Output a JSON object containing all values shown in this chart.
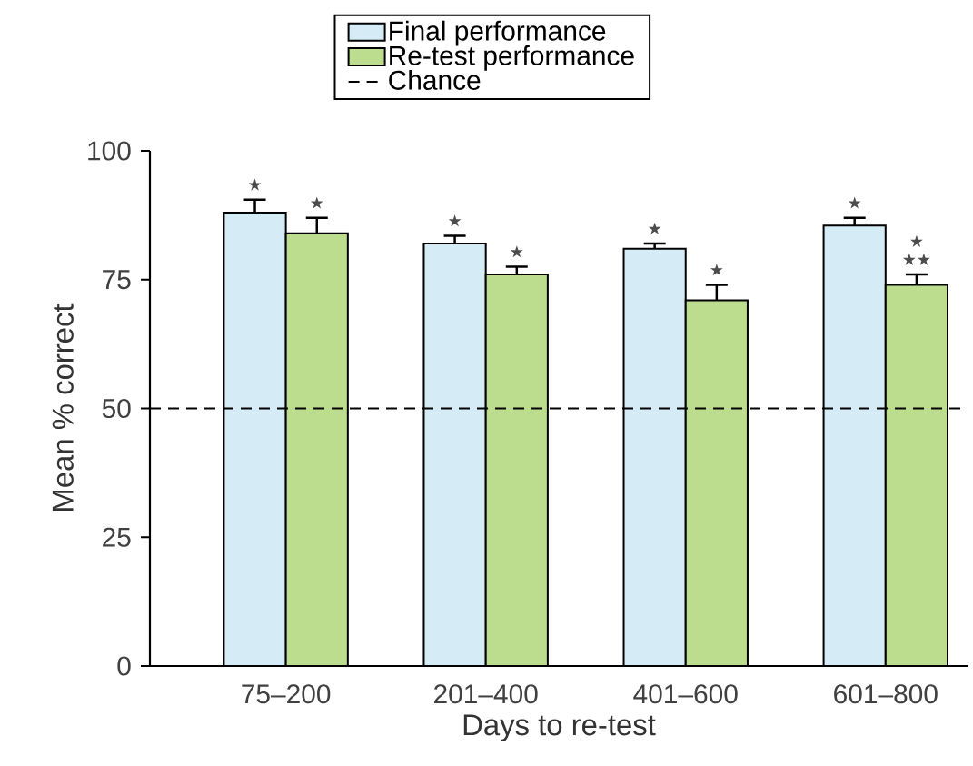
{
  "chart_data": {
    "type": "bar",
    "xlabel": "Days to re-test",
    "ylabel": "Mean % correct",
    "categories": [
      "75–200",
      "201–400",
      "401–600",
      "601–800"
    ],
    "series": [
      {
        "name": "Final performance",
        "color": "#d5ebf5",
        "values": [
          88,
          82,
          81,
          85.5
        ],
        "errors": [
          [
            88,
            90.5
          ],
          [
            82,
            83.5
          ],
          [
            81,
            82
          ],
          [
            85.5,
            87
          ]
        ]
      },
      {
        "name": "Re-test performance",
        "color": "#bcdc8e",
        "values": [
          84,
          76,
          71,
          74
        ],
        "errors": [
          [
            84,
            87
          ],
          [
            76,
            77.5
          ],
          [
            71,
            74
          ],
          [
            74,
            76
          ]
        ]
      }
    ],
    "ylim": [
      0,
      100
    ],
    "yticks": [
      0,
      25,
      50,
      75,
      100
    ],
    "grid": false,
    "legend": "top",
    "ref_lines": [
      {
        "axis": "y",
        "value": 50,
        "label": "Chance",
        "color": "#000000",
        "line_style": "dashed"
      }
    ],
    "annotations": [
      {
        "text": "★",
        "x": "75–200",
        "y": 88
      },
      {
        "text": "★",
        "x": "75–200",
        "y": 84
      },
      {
        "text": "★",
        "x": "201–400",
        "y": 82
      },
      {
        "text": "★",
        "x": "201–400",
        "y": 76
      },
      {
        "text": "★",
        "x": "401–600",
        "y": 81
      },
      {
        "text": "★",
        "x": "401–600",
        "y": 71
      },
      {
        "text": "★",
        "x": "601–800",
        "y": 85.5
      },
      {
        "text": "★",
        "x": "601–800",
        "y": 74
      },
      {
        "text": "★★",
        "x": "601–800",
        "y": 74
      }
    ]
  }
}
